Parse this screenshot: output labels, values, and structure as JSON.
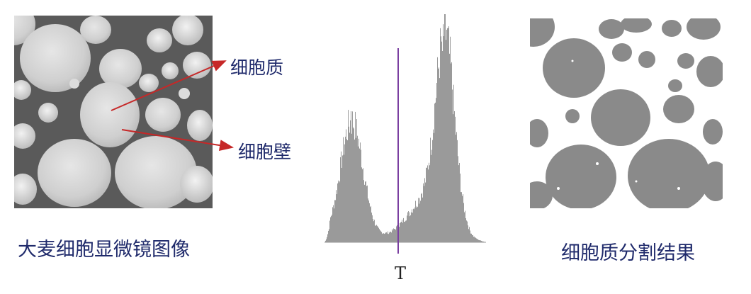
{
  "figure": {
    "left_caption": "大麦细胞显微镜图像",
    "right_caption": "细胞质分割结果",
    "annotations": {
      "cytoplasm": "细胞质",
      "cell_wall": "细胞壁"
    },
    "histogram": {
      "threshold_label": "T",
      "threshold_line_color": "#7a3fa0",
      "bar_color": "#9a9a9a"
    },
    "colors": {
      "arrow": "#c62828",
      "caption_text": "#1f2a6b",
      "segment_gray": "#8a8a8a",
      "segment_white": "#ffffff"
    }
  }
}
